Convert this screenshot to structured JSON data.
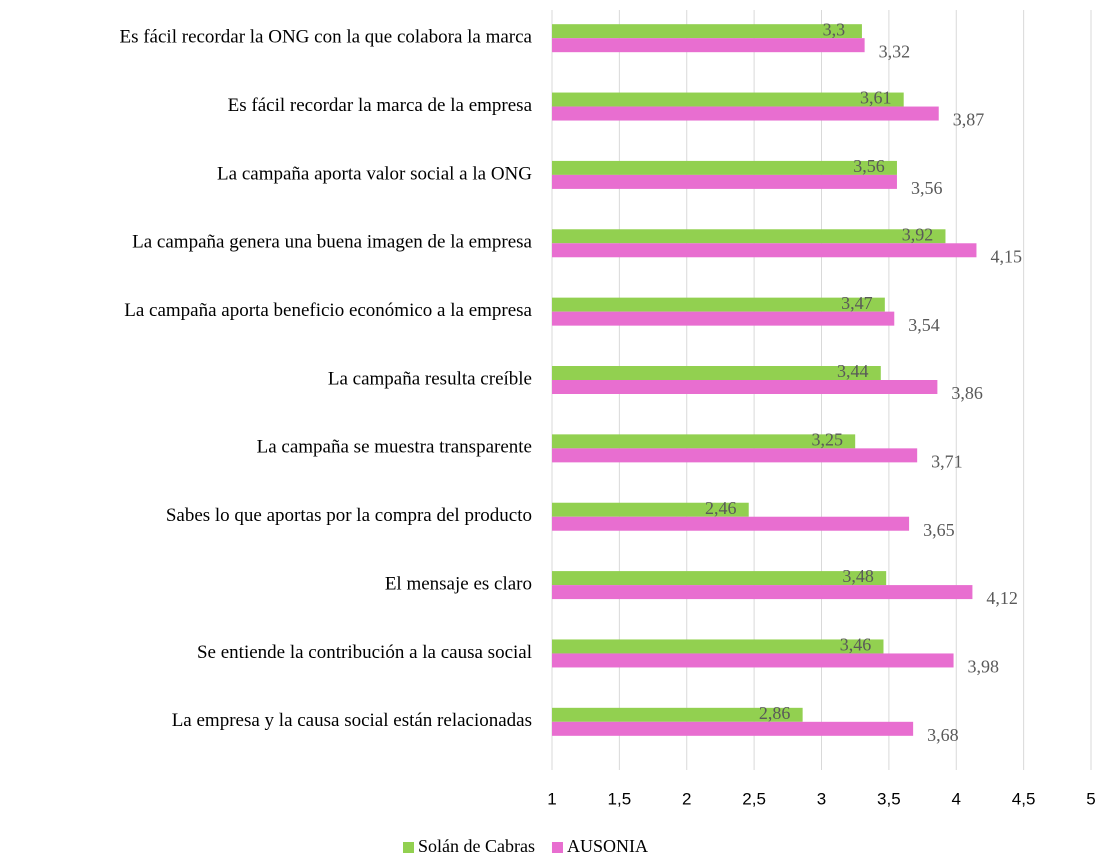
{
  "chart_data": {
    "type": "hbar",
    "categories": [
      "Es fácil recordar la ONG con la que colabora la marca",
      "Es fácil recordar la marca de la empresa",
      "La campaña aporta valor social a la ONG ",
      "La campaña genera una buena imagen de la empresa",
      "La campaña aporta beneficio económico a la empresa",
      "La campaña resulta creíble",
      "La campaña se muestra transparente",
      "Sabes lo que aportas por la compra del producto",
      "El mensaje es claro",
      "Se entiende la contribución a la causa social",
      "La empresa y la causa social están relacionadas"
    ],
    "series": [
      {
        "name": "Solán de Cabras",
        "color": "#92d050",
        "values": [
          3.3,
          3.61,
          3.56,
          3.92,
          3.47,
          3.44,
          3.25,
          2.46,
          3.48,
          3.46,
          2.86
        ],
        "value_labels": [
          "3,3",
          "3,61",
          "3,56",
          "3,92",
          "3,47",
          "3,44",
          "3,25",
          "2,46",
          "3,48",
          "3,46",
          "2,86"
        ]
      },
      {
        "name": "AUSONIA",
        "color": "#e86ed0",
        "values": [
          3.32,
          3.87,
          3.56,
          4.15,
          3.54,
          3.86,
          3.71,
          3.65,
          4.12,
          3.98,
          3.68
        ],
        "value_labels": [
          "3,32",
          "3,87",
          "3,56",
          "4,15",
          "3,54",
          "3,86",
          "3,71",
          "3,65",
          "4,12",
          "3,98",
          "3,68"
        ]
      }
    ],
    "xlim": [
      1,
      5
    ],
    "xticks": [
      1,
      {
        "value": 1.5,
        "label": "1,5"
      },
      2,
      {
        "value": 2.5,
        "label": "2,5"
      },
      3,
      {
        "value": 3.5,
        "label": "3,5"
      },
      4,
      {
        "value": 4.5,
        "label": "4,5"
      },
      5
    ],
    "grid": true,
    "legend": "bottom"
  }
}
